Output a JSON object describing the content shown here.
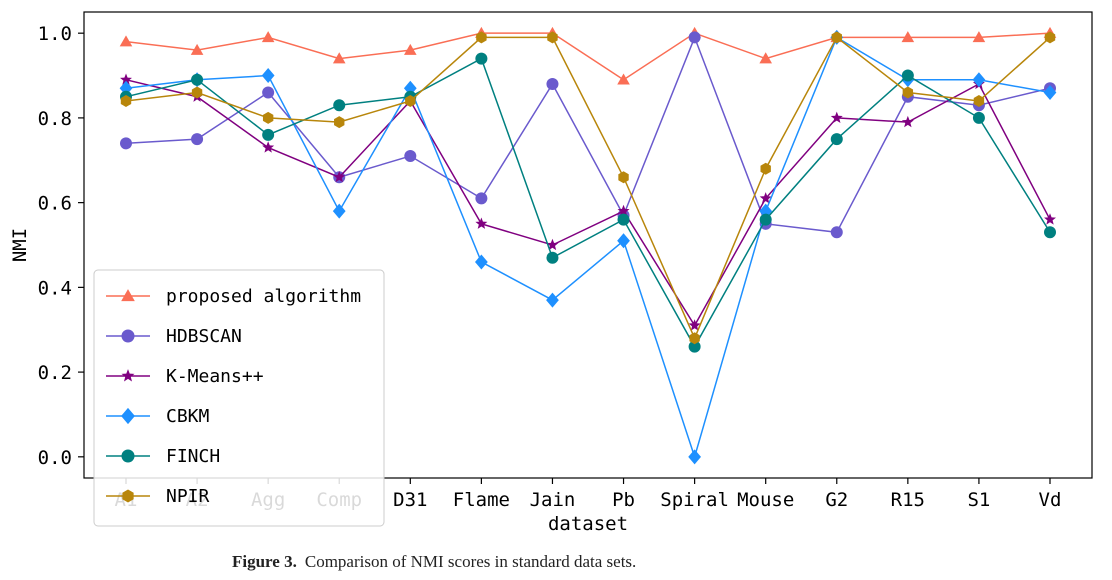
{
  "caption": {
    "label": "Figure 3.",
    "text": "Comparison of NMI scores in standard data sets."
  },
  "chart_data": {
    "type": "line",
    "title": "",
    "xlabel": "dataset",
    "ylabel": "NMI",
    "ylim": [
      -0.05,
      1.05
    ],
    "yticks": [
      0.0,
      0.2,
      0.4,
      0.6,
      0.8,
      1.0
    ],
    "ytick_labels": [
      "0.0",
      "0.2",
      "0.4",
      "0.6",
      "0.8",
      "1.0"
    ],
    "categories": [
      "A1",
      "A2",
      "Agg",
      "Comp",
      "D31",
      "Flame",
      "Jain",
      "Pb",
      "Spiral",
      "Mouse",
      "G2",
      "R15",
      "S1",
      "Vd"
    ],
    "grid": false,
    "legend_position": "lower-left",
    "series": [
      {
        "name": "proposed algorithm",
        "color": "#fa6e55",
        "marker": "triangle",
        "values": [
          0.98,
          0.96,
          0.99,
          0.94,
          0.96,
          1.0,
          1.0,
          0.89,
          1.0,
          0.94,
          0.99,
          0.99,
          0.99,
          1.0
        ]
      },
      {
        "name": "HDBSCAN",
        "color": "#6a5acd",
        "marker": "circle",
        "values": [
          0.74,
          0.75,
          0.86,
          0.66,
          0.71,
          0.61,
          0.88,
          0.57,
          0.99,
          0.55,
          0.53,
          0.85,
          0.83,
          0.87
        ]
      },
      {
        "name": "K-Means++",
        "color": "#800080",
        "marker": "star",
        "values": [
          0.89,
          0.85,
          0.73,
          0.66,
          0.84,
          0.55,
          0.5,
          0.58,
          0.31,
          0.61,
          0.8,
          0.79,
          0.88,
          0.56
        ]
      },
      {
        "name": "CBKM",
        "color": "#1e90ff",
        "marker": "diamond",
        "values": [
          0.87,
          0.89,
          0.9,
          0.58,
          0.87,
          0.46,
          0.37,
          0.51,
          0.0,
          0.58,
          0.99,
          0.89,
          0.89,
          0.86
        ]
      },
      {
        "name": "FINCH",
        "color": "#008080",
        "marker": "circle",
        "values": [
          0.85,
          0.89,
          0.76,
          0.83,
          0.85,
          0.94,
          0.47,
          0.56,
          0.26,
          0.56,
          0.75,
          0.9,
          0.8,
          0.53
        ]
      },
      {
        "name": "NPIR",
        "color": "#b8860b",
        "marker": "hexagon",
        "values": [
          0.84,
          0.86,
          0.8,
          0.79,
          0.84,
          0.99,
          0.99,
          0.66,
          0.28,
          0.68,
          0.99,
          0.86,
          0.84,
          0.99
        ]
      }
    ]
  }
}
